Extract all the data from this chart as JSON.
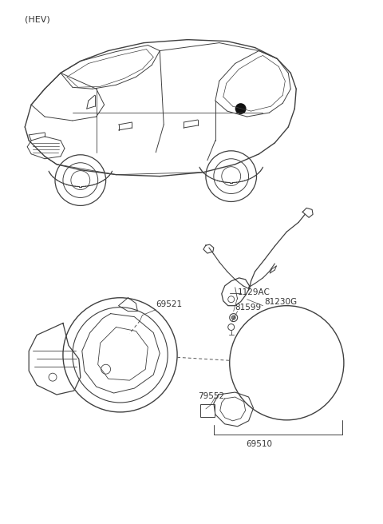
{
  "title": "(HEV)",
  "bg": "#ffffff",
  "lc": "#404040",
  "tc": "#333333",
  "fig_w": 4.8,
  "fig_h": 6.56,
  "dpi": 100
}
